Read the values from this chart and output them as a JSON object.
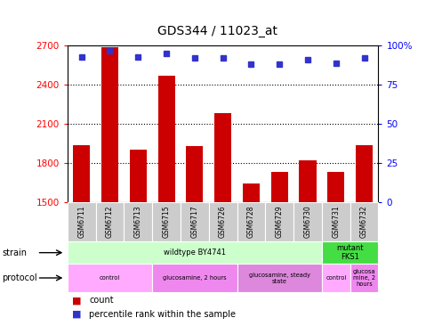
{
  "title": "GDS344 / 11023_at",
  "samples": [
    "GSM6711",
    "GSM6712",
    "GSM6713",
    "GSM6715",
    "GSM6717",
    "GSM6726",
    "GSM6728",
    "GSM6729",
    "GSM6730",
    "GSM6731",
    "GSM6732"
  ],
  "counts": [
    1940,
    2690,
    1900,
    2470,
    1930,
    2180,
    1640,
    1730,
    1820,
    1730,
    1940
  ],
  "percentiles": [
    93,
    97,
    93,
    95,
    92,
    92,
    88,
    88,
    91,
    89,
    92
  ],
  "ylim_left": [
    1500,
    2700
  ],
  "ylim_right": [
    0,
    100
  ],
  "yticks_left": [
    1500,
    1800,
    2100,
    2400,
    2700
  ],
  "yticks_right": [
    0,
    25,
    50,
    75,
    100
  ],
  "bar_color": "#cc0000",
  "dot_color": "#3333cc",
  "strain_groups": [
    {
      "label": "wildtype BY4741",
      "start": 0,
      "end": 9,
      "color": "#ccffcc"
    },
    {
      "label": "mutant\nFKS1",
      "start": 9,
      "end": 11,
      "color": "#44dd44"
    }
  ],
  "protocol_groups": [
    {
      "label": "control",
      "start": 0,
      "end": 3,
      "color": "#ffaaff"
    },
    {
      "label": "glucosamine, 2 hours",
      "start": 3,
      "end": 6,
      "color": "#ee88ee"
    },
    {
      "label": "glucosamine, steady\nstate",
      "start": 6,
      "end": 9,
      "color": "#dd88dd"
    },
    {
      "label": "control",
      "start": 9,
      "end": 10,
      "color": "#ffaaff"
    },
    {
      "label": "glucosa\nmine, 2\nhours",
      "start": 10,
      "end": 11,
      "color": "#ee88ee"
    }
  ],
  "legend_items": [
    {
      "color": "#cc0000",
      "label": "count"
    },
    {
      "color": "#3333cc",
      "label": "percentile rank within the sample"
    }
  ],
  "dotted_grid_values": [
    1800,
    2100,
    2400
  ],
  "bar_width": 0.6,
  "label_color": "#bbbbbb",
  "spine_color": "#000000"
}
